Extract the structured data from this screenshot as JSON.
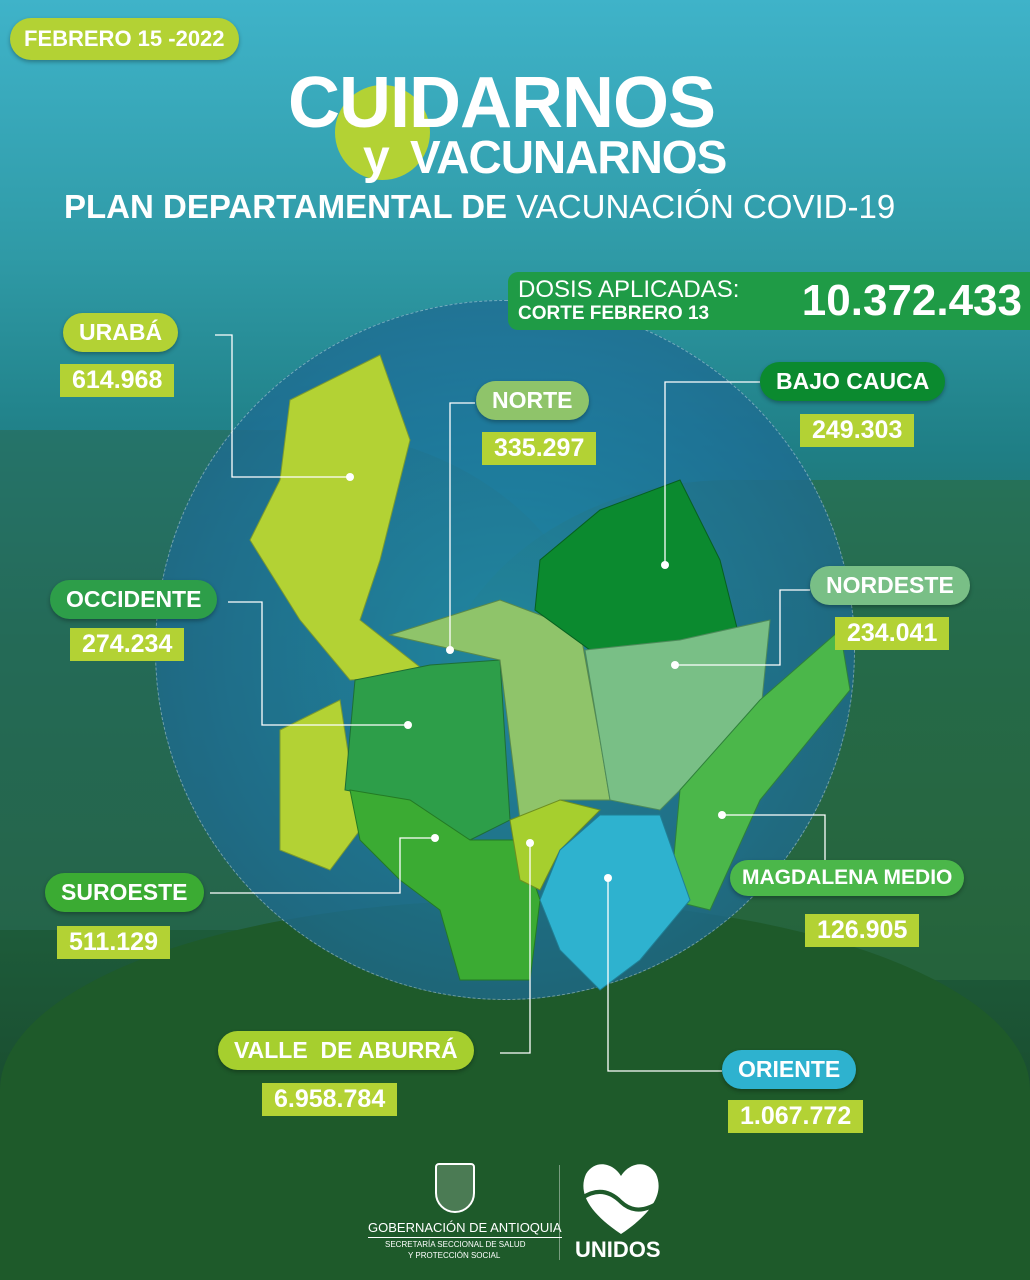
{
  "date_badge": "FEBRERO 15 -2022",
  "title": {
    "line1": "CUIDARNOS",
    "y": "y",
    "line2": "VACUNARNOS",
    "subtitle_bold": "PLAN DEPARTAMENTAL DE",
    "subtitle_light": "VACUNACIÓN COVID-19"
  },
  "total": {
    "label": "DOSIS APLICADAS:",
    "cutoff": "CORTE FEBRERO 13",
    "value": "10.372.433"
  },
  "regions": [
    {
      "name": "URABÁ",
      "value": "614.968",
      "color": "#b3d234"
    },
    {
      "name": "NORTE",
      "value": "335.297",
      "color": "#8fc46a"
    },
    {
      "name": "BAJO CAUCA",
      "value": "249.303",
      "color": "#0b8a2f"
    },
    {
      "name": "NORDESTE",
      "value": "234.041",
      "color": "#79bf86"
    },
    {
      "name": "OCCIDENTE",
      "value": "274.234",
      "color": "#2d9e49"
    },
    {
      "name": "MAGDALENA MEDIO",
      "value": "126.905",
      "color": "#4bb74a"
    },
    {
      "name": "SUROESTE",
      "value": "511.129",
      "color": "#3bab33"
    },
    {
      "name": "VALLE  DE ABURRÁ",
      "value": "6.958.784",
      "color": "#a6cf2e"
    },
    {
      "name": "ORIENTE",
      "value": "1.067.772",
      "color": "#2eb2cf"
    }
  ],
  "footer": {
    "gov": "GOBERNACIÓN DE ANTIOQUIA",
    "secretaria": "SECRETARÍA SECCIONAL DE SALUD",
    "proteccion": "Y PROTECCIÓN SOCIAL",
    "unidos": "UNIDOS"
  }
}
